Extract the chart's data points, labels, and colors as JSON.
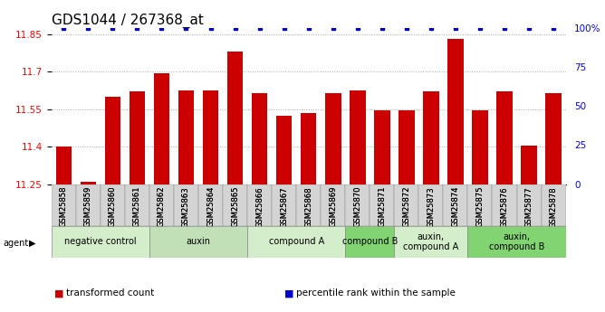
{
  "title": "GDS1044 / 267368_at",
  "samples": [
    "GSM25858",
    "GSM25859",
    "GSM25860",
    "GSM25861",
    "GSM25862",
    "GSM25863",
    "GSM25864",
    "GSM25865",
    "GSM25866",
    "GSM25867",
    "GSM25868",
    "GSM25869",
    "GSM25870",
    "GSM25871",
    "GSM25872",
    "GSM25873",
    "GSM25874",
    "GSM25875",
    "GSM25876",
    "GSM25877",
    "GSM25878"
  ],
  "bar_values": [
    11.4,
    11.258,
    11.6,
    11.62,
    11.695,
    11.625,
    11.625,
    11.78,
    11.615,
    11.525,
    11.535,
    11.615,
    11.625,
    11.545,
    11.545,
    11.62,
    11.83,
    11.545,
    11.62,
    11.405,
    11.615
  ],
  "percentile_values": [
    100,
    100,
    100,
    100,
    100,
    100,
    100,
    100,
    100,
    100,
    100,
    100,
    100,
    100,
    100,
    100,
    100,
    100,
    100,
    100,
    100
  ],
  "groups": [
    {
      "label": "negative control",
      "start": 0,
      "end": 4,
      "color": "#d4edca"
    },
    {
      "label": "auxin",
      "start": 4,
      "end": 8,
      "color": "#c2e0b8"
    },
    {
      "label": "compound A",
      "start": 8,
      "end": 12,
      "color": "#d4edca"
    },
    {
      "label": "compound B",
      "start": 12,
      "end": 14,
      "color": "#82d472"
    },
    {
      "label": "auxin,\ncompound A",
      "start": 14,
      "end": 17,
      "color": "#d4edca"
    },
    {
      "label": "auxin,\ncompound B",
      "start": 17,
      "end": 21,
      "color": "#82d472"
    }
  ],
  "ylim": [
    11.25,
    11.875
  ],
  "yticks": [
    11.25,
    11.4,
    11.55,
    11.7,
    11.85
  ],
  "ytick_labels": [
    "11.25",
    "11.4",
    "11.55",
    "11.7",
    "11.85"
  ],
  "right_yticks": [
    0,
    25,
    50,
    75,
    100
  ],
  "right_ytick_labels": [
    "0",
    "25",
    "50",
    "75",
    "100%"
  ],
  "bar_color": "#cc0000",
  "dot_color": "#0000cc",
  "grid_color": "#aaaaaa",
  "title_fontsize": 11,
  "tick_fontsize": 7.5,
  "sample_fontsize": 6,
  "group_fontsize": 7,
  "legend_items": [
    {
      "label": "transformed count",
      "color": "#cc0000"
    },
    {
      "label": "percentile rank within the sample",
      "color": "#0000cc"
    }
  ]
}
